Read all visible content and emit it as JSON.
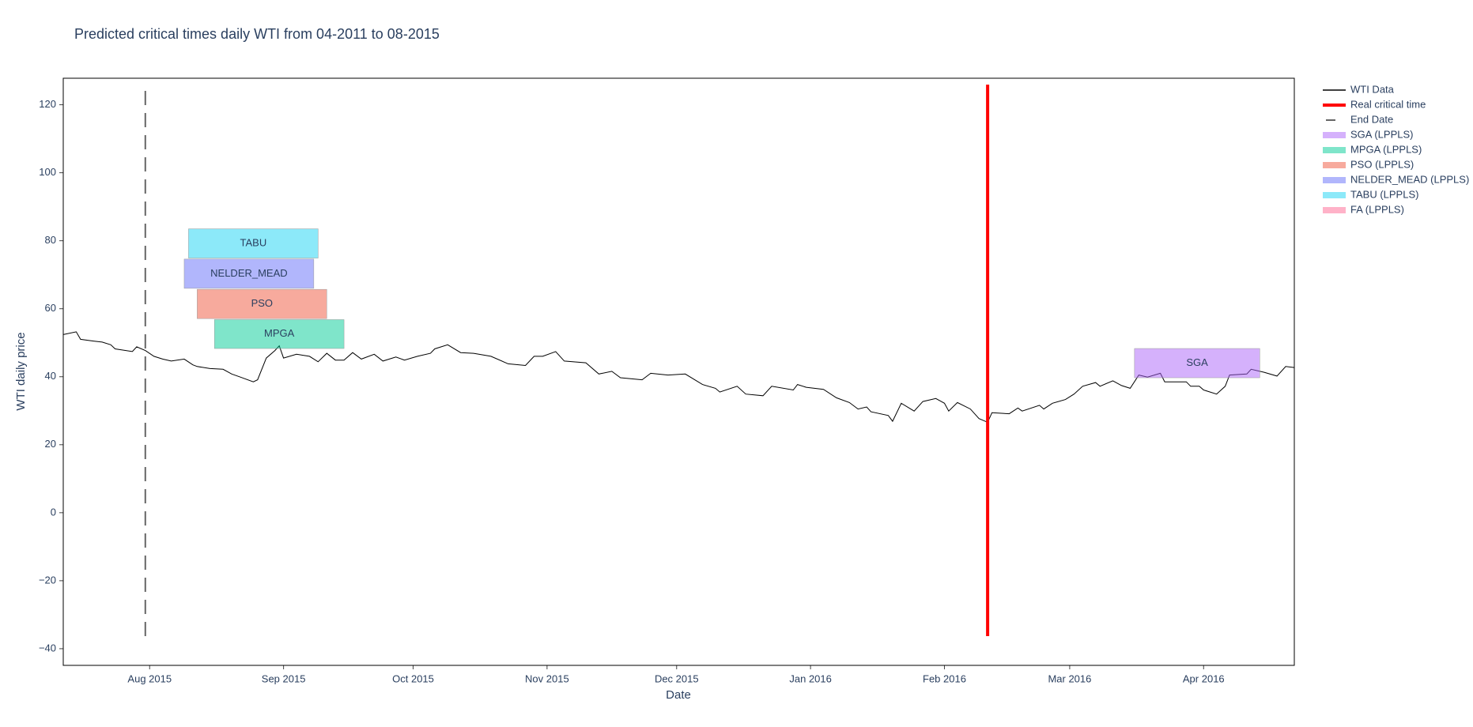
{
  "chart_data": {
    "type": "line",
    "title": "Predicted critical times daily WTI from 04-2011 to 08-2015",
    "x_label": "Date",
    "y_label": "WTI daily price",
    "xlim": [
      "2015-07-12",
      "2016-04-22"
    ],
    "xticks": [
      {
        "value": "2015-08-01",
        "label": "Aug 2015"
      },
      {
        "value": "2015-09-01",
        "label": "Sep 2015"
      },
      {
        "value": "2015-10-01",
        "label": "Oct 2015"
      },
      {
        "value": "2015-11-01",
        "label": "Nov 2015"
      },
      {
        "value": "2015-12-01",
        "label": "Dec 2015"
      },
      {
        "value": "2016-01-01",
        "label": "Jan 2016"
      },
      {
        "value": "2016-02-01",
        "label": "Feb 2016"
      },
      {
        "value": "2016-03-01",
        "label": "Mar 2016"
      },
      {
        "value": "2016-04-01",
        "label": "Apr 2016"
      }
    ],
    "ylim": [
      -44.9,
      127.8
    ],
    "yticks": [
      {
        "value": -40,
        "label": "−40"
      },
      {
        "value": -20,
        "label": "−20"
      },
      0,
      20,
      40,
      60,
      80,
      100,
      120
    ],
    "x": [
      "2015-07-12",
      "2015-07-15",
      "2015-07-16",
      "2015-07-19",
      "2015-07-21",
      "2015-07-23",
      "2015-07-24",
      "2015-07-28",
      "2015-07-29",
      "2015-07-31",
      "2015-08-02",
      "2015-08-04",
      "2015-08-06",
      "2015-08-09",
      "2015-08-11",
      "2015-08-12",
      "2015-08-15",
      "2015-08-18",
      "2015-08-20",
      "2015-08-22",
      "2015-08-25",
      "2015-08-26",
      "2015-08-28",
      "2015-08-30",
      "2015-08-31",
      "2015-09-01",
      "2015-09-04",
      "2015-09-07",
      "2015-09-09",
      "2015-09-11",
      "2015-09-13",
      "2015-09-15",
      "2015-09-17",
      "2015-09-19",
      "2015-09-22",
      "2015-09-24",
      "2015-09-27",
      "2015-09-29",
      "2015-10-02",
      "2015-10-05",
      "2015-10-06",
      "2015-10-09",
      "2015-10-12",
      "2015-10-15",
      "2015-10-19",
      "2015-10-23",
      "2015-10-27",
      "2015-10-29",
      "2015-10-31",
      "2015-11-03",
      "2015-11-05",
      "2015-11-10",
      "2015-11-13",
      "2015-11-16",
      "2015-11-18",
      "2015-11-23",
      "2015-11-25",
      "2015-11-29",
      "2015-12-03",
      "2015-12-07",
      "2015-12-10",
      "2015-12-11",
      "2015-12-15",
      "2015-12-17",
      "2015-12-21",
      "2015-12-23",
      "2015-12-28",
      "2015-12-29",
      "2015-12-31",
      "2016-01-04",
      "2016-01-07",
      "2016-01-10",
      "2016-01-12",
      "2016-01-14",
      "2016-01-15",
      "2016-01-19",
      "2016-01-20",
      "2016-01-22",
      "2016-01-25",
      "2016-01-27",
      "2016-01-30",
      "2016-02-01",
      "2016-02-02",
      "2016-02-04",
      "2016-02-07",
      "2016-02-09",
      "2016-02-11",
      "2016-02-12",
      "2016-02-16",
      "2016-02-18",
      "2016-02-19",
      "2016-02-23",
      "2016-02-24",
      "2016-02-26",
      "2016-02-29",
      "2016-03-02",
      "2016-03-04",
      "2016-03-07",
      "2016-03-08",
      "2016-03-11",
      "2016-03-13",
      "2016-03-15",
      "2016-03-17",
      "2016-03-19",
      "2016-03-22",
      "2016-03-23",
      "2016-03-28",
      "2016-03-29",
      "2016-03-31",
      "2016-04-01",
      "2016-04-04",
      "2016-04-06",
      "2016-04-07",
      "2016-04-11",
      "2016-04-12",
      "2016-04-15",
      "2016-04-18",
      "2016-04-20",
      "2016-04-22"
    ],
    "series": [
      {
        "name": "WTI Data",
        "color": "#000000",
        "values": [
          52.4,
          53.2,
          51.0,
          50.5,
          50.2,
          49.4,
          48.2,
          47.4,
          48.8,
          47.7,
          46.0,
          45.2,
          44.6,
          45.2,
          43.5,
          43.0,
          42.4,
          42.2,
          40.8,
          39.9,
          38.5,
          39.1,
          45.5,
          47.7,
          49.1,
          45.5,
          46.6,
          46.0,
          44.4,
          46.9,
          44.9,
          44.9,
          47.1,
          45.2,
          46.6,
          44.6,
          45.8,
          44.9,
          46.0,
          46.9,
          48.2,
          49.4,
          47.1,
          46.9,
          46.0,
          43.8,
          43.3,
          46.0,
          46.0,
          47.4,
          44.6,
          44.1,
          40.8,
          41.6,
          39.7,
          39.1,
          41.0,
          40.5,
          40.8,
          37.7,
          36.6,
          35.5,
          37.2,
          34.9,
          34.4,
          37.2,
          36.1,
          37.7,
          36.9,
          36.3,
          33.8,
          32.4,
          30.5,
          31.1,
          29.7,
          28.6,
          26.9,
          32.2,
          29.9,
          32.7,
          33.6,
          32.2,
          29.9,
          32.4,
          30.5,
          27.7,
          26.6,
          29.4,
          29.1,
          30.8,
          29.9,
          31.6,
          30.5,
          32.2,
          33.3,
          34.9,
          37.2,
          38.3,
          37.2,
          38.8,
          37.4,
          36.6,
          40.5,
          39.9,
          41.0,
          38.5,
          38.5,
          37.2,
          37.2,
          36.1,
          34.9,
          37.2,
          40.5,
          40.8,
          42.2,
          41.3,
          40.2,
          43.0,
          42.7
        ]
      }
    ],
    "vlines": [
      {
        "name": "Real critical time",
        "color": "#ff0000",
        "dash": false,
        "x": "2016-02-11",
        "y": [
          -36.3,
          125.9
        ]
      },
      {
        "name": "End Date",
        "color": "#666666",
        "dash": true,
        "x": "2015-07-31",
        "y": [
          -36.3,
          125.9
        ]
      }
    ],
    "boxes": [
      {
        "name": "SGA (LPPLS)",
        "label": "SGA",
        "color": "#ab63fa",
        "x": [
          "2016-03-16",
          "2016-04-14"
        ],
        "y": [
          39.7,
          48.3
        ]
      },
      {
        "name": "MPGA (LPPLS)",
        "label": "MPGA",
        "color": "#00cc96",
        "x": [
          "2015-08-16",
          "2015-09-15"
        ],
        "y": [
          48.3,
          56.8
        ]
      },
      {
        "name": "PSO (LPPLS)",
        "label": "PSO",
        "color": "#ef553b",
        "x": [
          "2015-08-12",
          "2015-09-11"
        ],
        "y": [
          57.1,
          65.7
        ]
      },
      {
        "name": "NELDER_MEAD (LPPLS)",
        "label": "NELDER_MEAD",
        "color": "#636efa",
        "x": [
          "2015-08-09",
          "2015-09-08"
        ],
        "y": [
          66.0,
          74.6
        ]
      },
      {
        "name": "TABU (LPPLS)",
        "label": "TABU",
        "color": "#19d3f3",
        "x": [
          "2015-08-10",
          "2015-09-09"
        ],
        "y": [
          74.9,
          83.5
        ]
      },
      {
        "name": "FA (LPPLS)",
        "color": "#ff6692"
      }
    ]
  }
}
